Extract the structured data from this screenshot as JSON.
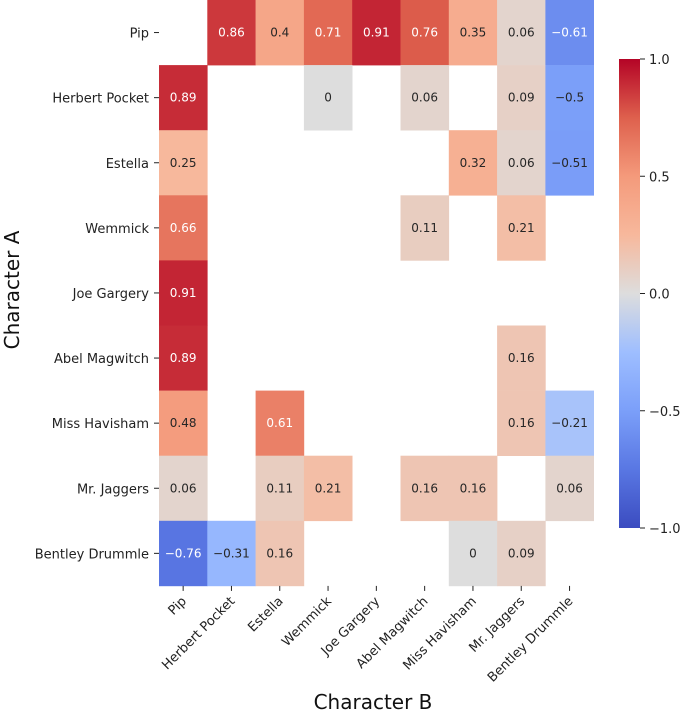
{
  "chart_data": {
    "type": "heatmap",
    "title": "",
    "xlabel": "Character B",
    "ylabel": "Character A",
    "rows": [
      "Pip",
      "Herbert Pocket",
      "Estella",
      "Wemmick",
      "Joe Gargery",
      "Abel Magwitch",
      "Miss Havisham",
      "Mr. Jaggers",
      "Bentley Drummle"
    ],
    "cols": [
      "Pip",
      "Herbert Pocket",
      "Estella",
      "Wemmick",
      "Joe Gargery",
      "Abel Magwitch",
      "Miss Havisham",
      "Mr. Jaggers",
      "Bentley Drummle"
    ],
    "values": [
      [
        null,
        0.86,
        0.4,
        0.71,
        0.91,
        0.76,
        0.35,
        0.06,
        -0.61
      ],
      [
        0.89,
        null,
        null,
        0,
        null,
        0.06,
        null,
        0.09,
        -0.5
      ],
      [
        0.25,
        null,
        null,
        null,
        null,
        null,
        0.32,
        0.06,
        -0.51
      ],
      [
        0.66,
        null,
        null,
        null,
        null,
        0.11,
        null,
        0.21,
        null
      ],
      [
        0.91,
        null,
        null,
        null,
        null,
        null,
        null,
        null,
        null
      ],
      [
        0.89,
        null,
        null,
        null,
        null,
        null,
        null,
        0.16,
        null
      ],
      [
        0.48,
        null,
        0.61,
        null,
        null,
        null,
        null,
        0.16,
        -0.21
      ],
      [
        0.06,
        null,
        0.11,
        0.21,
        null,
        0.16,
        0.16,
        null,
        0.06
      ],
      [
        -0.76,
        -0.31,
        0.16,
        null,
        null,
        null,
        0,
        0.09,
        null
      ]
    ],
    "colorbar": {
      "min": -1.0,
      "max": 1.0,
      "ticks": [
        -1.0,
        -0.5,
        0.0,
        0.5,
        1.0
      ],
      "tick_labels": [
        "−1.0",
        "−0.5",
        "0.0",
        "0.5",
        "1.0"
      ],
      "colormap": "coolwarm"
    }
  }
}
